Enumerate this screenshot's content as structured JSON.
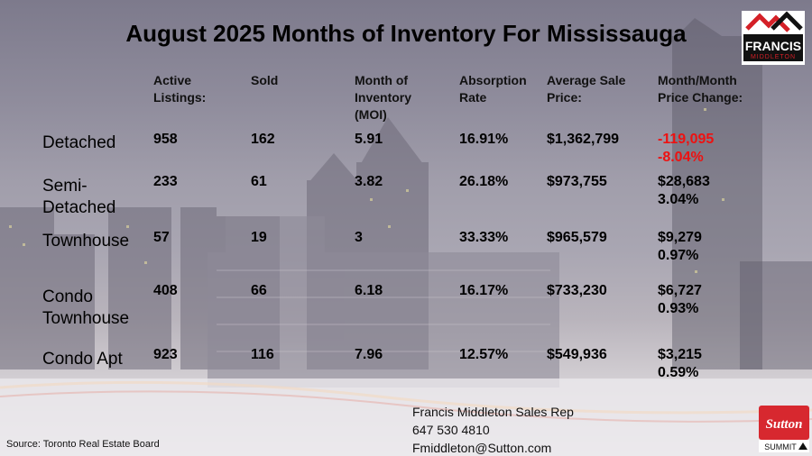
{
  "title": "August 2025 Months of Inventory For Mississauga",
  "headers": {
    "active": [
      "Active",
      "Listings:"
    ],
    "sold": [
      "Sold"
    ],
    "moi": [
      "Month of",
      "Inventory",
      "(MOI)"
    ],
    "absorption": [
      "Absorption",
      "Rate"
    ],
    "avg_price": [
      "Average Sale",
      "Price:"
    ],
    "mom_change": [
      "Month/Month",
      "Price Change:"
    ]
  },
  "rows": [
    {
      "label": [
        "Detached"
      ],
      "active": "958",
      "sold": "162",
      "moi": "5.91",
      "absorption": "16.91%",
      "avg_price": "$1,362,799",
      "change_amount": "-119,095",
      "change_pct": "-8.04%",
      "negative": true
    },
    {
      "label": [
        "Semi-",
        "Detached"
      ],
      "active": "233",
      "sold": "61",
      "moi": "3.82",
      "absorption": "26.18%",
      "avg_price": "$973,755",
      "change_amount": "$28,683",
      "change_pct": "3.04%",
      "negative": false
    },
    {
      "label": [
        "Townhouse"
      ],
      "active": "57",
      "sold": "19",
      "moi": "3",
      "absorption": "33.33%",
      "avg_price": "$965,579",
      "change_amount": "$9,279",
      "change_pct": "0.97%",
      "negative": false
    },
    {
      "label": [
        "Condo",
        "Townhouse"
      ],
      "active": "408",
      "sold": "66",
      "moi": "6.18",
      "absorption": "16.17%",
      "avg_price": "$733,230",
      "change_amount": "$6,727",
      "change_pct": "0.93%",
      "negative": false
    },
    {
      "label": [
        "Condo Apt"
      ],
      "active": "923",
      "sold": "116",
      "moi": "7.96",
      "absorption": "12.57%",
      "avg_price": "$549,936",
      "change_amount": "$3,215",
      "change_pct": "0.59%",
      "negative": false
    }
  ],
  "source": "Source: Toronto Real Estate Board",
  "contact": {
    "name": "Francis Middleton Sales Rep",
    "phone": "647 530 4810",
    "email": "Fmiddleton@Sutton.com"
  },
  "logos": {
    "francis_top": "FRANCIS",
    "francis_bottom": "MIDDLETON",
    "sutton_top": "Sutton",
    "sutton_bottom": "SUMMIT"
  },
  "colors": {
    "negative": "#ee1111",
    "francis_red": "#d42027",
    "sutton_red": "#d7282f"
  }
}
